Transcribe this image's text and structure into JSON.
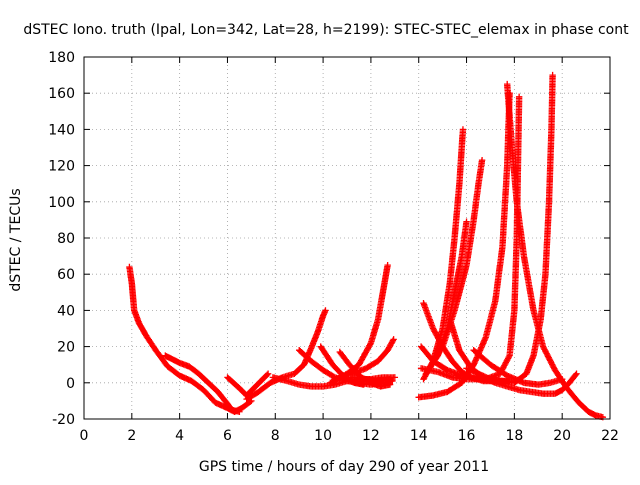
{
  "colors": {
    "series": "#ff0000",
    "grid": "#a0a0a0",
    "axis": "#000000"
  },
  "chart_data": {
    "type": "scatter",
    "title": "dSTEC Iono. truth (Ipal, Lon=342, Lat=28, h=2199): STEC-STEC_elemax in phase cont",
    "xlabel": "GPS time / hours of day 290 of year 2011",
    "ylabel": "dSTEC  / TECUs",
    "xlim": [
      0,
      22
    ],
    "ylim": [
      -20,
      180
    ],
    "xticks": [
      0,
      2,
      4,
      6,
      8,
      10,
      12,
      14,
      16,
      18,
      20,
      22
    ],
    "yticks": [
      -20,
      0,
      20,
      40,
      60,
      80,
      100,
      120,
      140,
      160,
      180
    ],
    "grid": true,
    "marker": "plus",
    "series": [
      {
        "points": [
          [
            1.9,
            64
          ],
          [
            2.0,
            55
          ],
          [
            2.1,
            40
          ],
          [
            2.3,
            33
          ],
          [
            2.6,
            26
          ],
          [
            3.0,
            18
          ],
          [
            3.5,
            9
          ],
          [
            4.0,
            4
          ],
          [
            4.5,
            1
          ],
          [
            5.0,
            -4
          ],
          [
            5.5,
            -11
          ],
          [
            6.0,
            -14
          ],
          [
            6.3,
            -16
          ],
          [
            6.6,
            -14
          ],
          [
            7.0,
            -10
          ]
        ]
      },
      {
        "points": [
          [
            3.4,
            15
          ],
          [
            3.7,
            13
          ],
          [
            4.0,
            11
          ],
          [
            4.4,
            9
          ],
          [
            4.8,
            5
          ],
          [
            5.2,
            0
          ],
          [
            5.6,
            -5
          ],
          [
            5.9,
            -10
          ],
          [
            6.2,
            -15
          ],
          [
            6.5,
            -16
          ]
        ]
      },
      {
        "points": [
          [
            6.0,
            3
          ],
          [
            6.5,
            -3
          ],
          [
            6.8,
            -7
          ],
          [
            7.1,
            -3
          ],
          [
            7.4,
            1
          ],
          [
            7.7,
            5
          ]
        ]
      },
      {
        "points": [
          [
            6.8,
            -9
          ],
          [
            7.3,
            -5
          ],
          [
            7.8,
            0
          ],
          [
            8.3,
            3
          ],
          [
            8.8,
            5
          ],
          [
            9.2,
            10
          ],
          [
            9.5,
            19
          ],
          [
            9.8,
            29
          ],
          [
            10.0,
            37
          ],
          [
            10.1,
            40
          ]
        ]
      },
      {
        "points": [
          [
            7.9,
            3
          ],
          [
            8.5,
            1
          ],
          [
            9.0,
            -1
          ],
          [
            9.5,
            -2
          ],
          [
            10.0,
            -2
          ],
          [
            10.5,
            -1
          ],
          [
            11.0,
            1
          ],
          [
            11.5,
            2
          ],
          [
            12.0,
            2
          ],
          [
            12.5,
            3
          ],
          [
            13.0,
            3
          ]
        ]
      },
      {
        "points": [
          [
            9.0,
            18
          ],
          [
            9.5,
            12
          ],
          [
            10.0,
            7
          ],
          [
            10.5,
            3
          ],
          [
            11.0,
            1
          ],
          [
            11.5,
            0
          ],
          [
            12.0,
            -1
          ],
          [
            12.5,
            0
          ],
          [
            12.9,
            1
          ]
        ]
      },
      {
        "points": [
          [
            9.9,
            20
          ],
          [
            10.4,
            10
          ],
          [
            10.9,
            3
          ],
          [
            11.3,
            0
          ],
          [
            11.7,
            -1
          ]
        ]
      },
      {
        "points": [
          [
            10.7,
            17
          ],
          [
            11.1,
            10
          ],
          [
            11.6,
            3
          ],
          [
            12.0,
            0
          ],
          [
            12.4,
            -2
          ],
          [
            12.8,
            -1
          ]
        ]
      },
      {
        "points": [
          [
            10.3,
            0
          ],
          [
            11.0,
            5
          ],
          [
            11.5,
            10
          ],
          [
            12.0,
            22
          ],
          [
            12.3,
            35
          ],
          [
            12.5,
            50
          ],
          [
            12.7,
            65
          ]
        ]
      },
      {
        "points": [
          [
            10.5,
            2
          ],
          [
            11.2,
            5
          ],
          [
            11.8,
            8
          ],
          [
            12.3,
            12
          ],
          [
            12.7,
            18
          ],
          [
            12.95,
            24
          ]
        ]
      },
      {
        "points": [
          [
            11.2,
            3
          ],
          [
            11.8,
            2
          ],
          [
            12.3,
            1
          ],
          [
            12.8,
            2
          ]
        ]
      },
      {
        "points": [
          [
            14.2,
            44
          ],
          [
            14.6,
            30
          ],
          [
            15.0,
            20
          ],
          [
            15.4,
            12
          ],
          [
            15.8,
            6
          ],
          [
            16.2,
            3
          ],
          [
            16.7,
            1
          ],
          [
            17.2,
            1
          ]
        ]
      },
      {
        "points": [
          [
            14.1,
            20
          ],
          [
            14.6,
            12
          ],
          [
            15.2,
            7
          ],
          [
            15.8,
            4
          ],
          [
            16.5,
            2
          ],
          [
            17.2,
            1
          ],
          [
            17.8,
            1
          ]
        ]
      },
      {
        "points": [
          [
            14.2,
            2
          ],
          [
            14.6,
            12
          ],
          [
            15.0,
            30
          ],
          [
            15.3,
            55
          ],
          [
            15.5,
            80
          ],
          [
            15.7,
            110
          ],
          [
            15.85,
            140
          ]
        ]
      },
      {
        "points": [
          [
            14.3,
            5
          ],
          [
            14.8,
            15
          ],
          [
            15.2,
            30
          ],
          [
            15.5,
            50
          ],
          [
            15.8,
            70
          ],
          [
            16.0,
            89
          ]
        ]
      },
      {
        "points": [
          [
            14.4,
            7
          ],
          [
            15.0,
            20
          ],
          [
            15.5,
            40
          ],
          [
            16.0,
            65
          ],
          [
            16.3,
            90
          ],
          [
            16.5,
            110
          ],
          [
            16.65,
            123
          ]
        ]
      },
      {
        "points": [
          [
            14.0,
            -8
          ],
          [
            14.6,
            -7
          ],
          [
            15.2,
            -5
          ],
          [
            15.8,
            0
          ],
          [
            16.3,
            10
          ],
          [
            16.8,
            25
          ],
          [
            17.2,
            45
          ],
          [
            17.5,
            75
          ],
          [
            17.7,
            120
          ],
          [
            17.8,
            160
          ]
        ]
      },
      {
        "points": [
          [
            14.1,
            8
          ],
          [
            14.8,
            6
          ],
          [
            15.4,
            3
          ],
          [
            16.0,
            2
          ],
          [
            16.8,
            2
          ],
          [
            17.4,
            5
          ],
          [
            17.8,
            15
          ],
          [
            18.0,
            40
          ],
          [
            18.1,
            80
          ],
          [
            18.15,
            120
          ],
          [
            18.2,
            158
          ]
        ]
      },
      {
        "points": [
          [
            17.7,
            165
          ],
          [
            17.9,
            130
          ],
          [
            18.1,
            100
          ],
          [
            18.4,
            70
          ],
          [
            18.8,
            40
          ],
          [
            19.2,
            20
          ],
          [
            19.7,
            7
          ],
          [
            20.2,
            -3
          ],
          [
            20.7,
            -11
          ],
          [
            21.1,
            -16
          ],
          [
            21.4,
            -18
          ],
          [
            21.7,
            -19
          ]
        ]
      },
      {
        "points": [
          [
            15.3,
            35
          ],
          [
            15.7,
            18
          ],
          [
            16.2,
            8
          ],
          [
            16.7,
            3
          ],
          [
            17.2,
            0
          ],
          [
            17.7,
            -2
          ],
          [
            18.2,
            -4
          ],
          [
            18.7,
            -5
          ],
          [
            19.2,
            -6
          ],
          [
            19.7,
            -6
          ],
          [
            20.0,
            -4
          ],
          [
            20.3,
            0
          ],
          [
            20.6,
            5
          ]
        ]
      },
      {
        "points": [
          [
            16.3,
            18
          ],
          [
            17.0,
            10
          ],
          [
            17.7,
            4
          ],
          [
            18.4,
            0
          ],
          [
            19.0,
            -1
          ],
          [
            19.5,
            0
          ],
          [
            20.0,
            2
          ]
        ]
      },
      {
        "points": [
          [
            16.0,
            8
          ],
          [
            17.0,
            2
          ],
          [
            18.0,
            0
          ],
          [
            18.5,
            5
          ],
          [
            18.8,
            15
          ],
          [
            19.1,
            35
          ],
          [
            19.3,
            60
          ],
          [
            19.45,
            100
          ],
          [
            19.55,
            140
          ],
          [
            19.6,
            170
          ]
        ]
      }
    ]
  }
}
